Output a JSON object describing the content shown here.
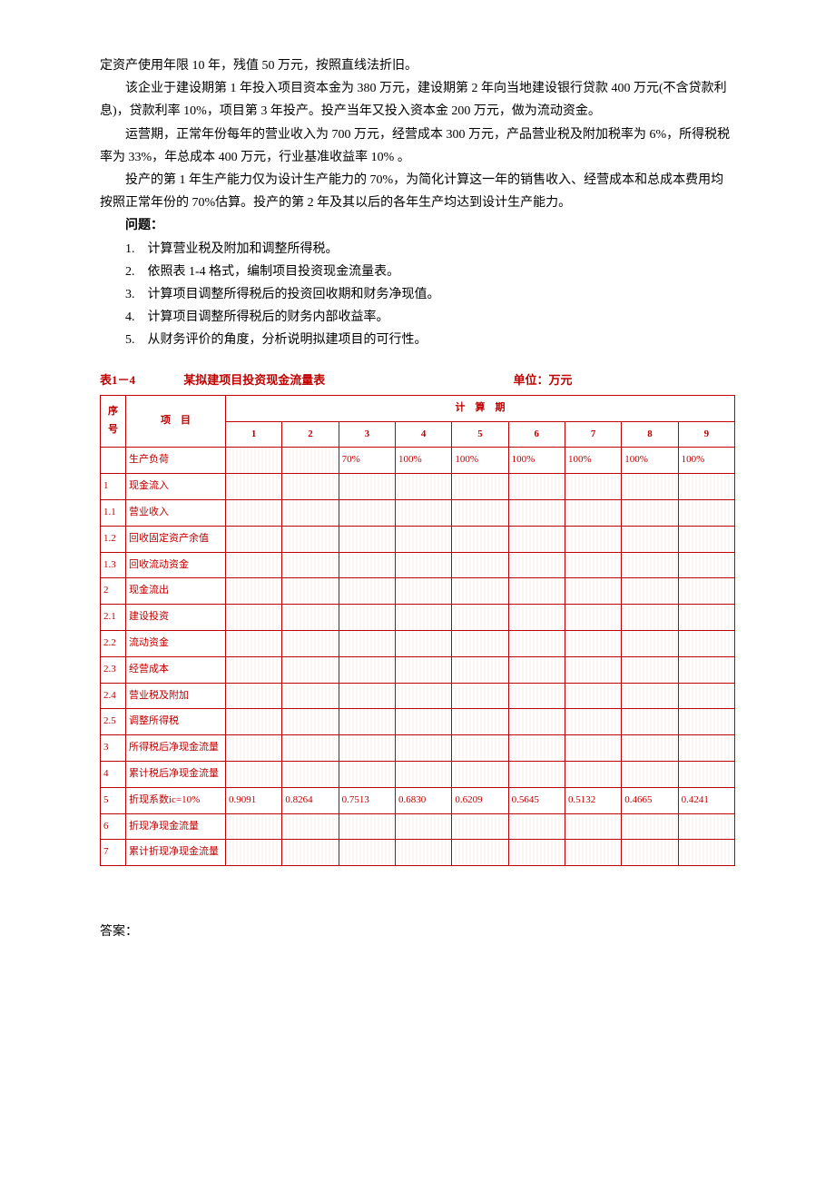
{
  "paragraphs": {
    "p1": "定资产使用年限 10 年，残值 50 万元，按照直线法折旧。",
    "p2": "该企业于建设期第 1 年投入项目资本金为 380 万元，建设期第 2 年向当地建设银行贷款 400 万元(不含贷款利息)，贷款利率 10%，项目第 3 年投产。投产当年又投入资本金 200 万元，做为流动资金。",
    "p3": "运营期，正常年份每年的营业收入为 700 万元，经营成本 300 万元，产品营业税及附加税率为 6%，所得税税率为 33%，年总成本 400 万元，行业基准收益率 10% 。",
    "p4": "投产的第 1 年生产能力仅为设计生产能力的 70%，为简化计算这一年的销售收入、经营成本和总成本费用均按照正常年份的 70%估算。投产的第 2 年及其以后的各年生产均达到设计生产能力。",
    "q_label": "问题：",
    "q1": "1.　计算营业税及附加和调整所得税。",
    "q2": "2.　依照表 1-4 格式，编制项目投资现金流量表。",
    "q3": "3.　计算项目调整所得税后的投资回收期和财务净现值。",
    "q4": "4.　计算项目调整所得税后的财务内部收益率。",
    "q5": "5.　从财务评价的角度，分析说明拟建项目的可行性。"
  },
  "table": {
    "caption_left": "表1－4",
    "caption_title": "某拟建项目投资现金流量表",
    "caption_unit": "单位：万元",
    "header_seq": "序号",
    "header_item": "项　目",
    "header_period": "计　算　期",
    "periods": [
      "1",
      "2",
      "3",
      "4",
      "5",
      "6",
      "7",
      "8",
      "9"
    ],
    "rows": [
      {
        "seq": "",
        "item": "生产负荷",
        "cells": [
          "",
          "",
          "70%",
          "100%",
          "100%",
          "100%",
          "100%",
          "100%",
          "100%"
        ]
      },
      {
        "seq": "1",
        "item": "现金流入",
        "cells": [
          "",
          "",
          "",
          "",
          "",
          "",
          "",
          "",
          ""
        ]
      },
      {
        "seq": "1.1",
        "item": "营业收入",
        "cells": [
          "",
          "",
          "",
          "",
          "",
          "",
          "",
          "",
          ""
        ]
      },
      {
        "seq": "1.2",
        "item": "回收固定资产余值",
        "cells": [
          "",
          "",
          "",
          "",
          "",
          "",
          "",
          "",
          ""
        ]
      },
      {
        "seq": "1.3",
        "item": "回收流动资金",
        "cells": [
          "",
          "",
          "",
          "",
          "",
          "",
          "",
          "",
          ""
        ]
      },
      {
        "seq": "2",
        "item": "现金流出",
        "cells": [
          "",
          "",
          "",
          "",
          "",
          "",
          "",
          "",
          ""
        ]
      },
      {
        "seq": "2.1",
        "item": "建设投资",
        "cells": [
          "",
          "",
          "",
          "",
          "",
          "",
          "",
          "",
          ""
        ]
      },
      {
        "seq": "2.2",
        "item": "流动资金",
        "cells": [
          "",
          "",
          "",
          "",
          "",
          "",
          "",
          "",
          ""
        ]
      },
      {
        "seq": "2.3",
        "item": "经营成本",
        "cells": [
          "",
          "",
          "",
          "",
          "",
          "",
          "",
          "",
          ""
        ]
      },
      {
        "seq": "2.4",
        "item": "营业税及附加",
        "cells": [
          "",
          "",
          "",
          "",
          "",
          "",
          "",
          "",
          ""
        ]
      },
      {
        "seq": "2.5",
        "item": "调整所得税",
        "cells": [
          "",
          "",
          "",
          "",
          "",
          "",
          "",
          "",
          ""
        ]
      },
      {
        "seq": "3",
        "item": "所得税后净现金流量",
        "cells": [
          "",
          "",
          "",
          "",
          "",
          "",
          "",
          "",
          ""
        ]
      },
      {
        "seq": "4",
        "item": "累计税后净现金流量",
        "cells": [
          "",
          "",
          "",
          "",
          "",
          "",
          "",
          "",
          ""
        ]
      },
      {
        "seq": "5",
        "item": "折现系数ic=10%",
        "cells": [
          "0.9091",
          "0.8264",
          "0.7513",
          "0.6830",
          "0.6209",
          "0.5645",
          "0.5132",
          "0.4665",
          "0.4241"
        ]
      },
      {
        "seq": "6",
        "item": "折现净现金流量",
        "cells": [
          "",
          "",
          "",
          "",
          "",
          "",
          "",
          "",
          ""
        ]
      },
      {
        "seq": "7",
        "item": "累计折现净现金流量",
        "cells": [
          "",
          "",
          "",
          "",
          "",
          "",
          "",
          "",
          ""
        ]
      }
    ]
  },
  "answer_label": "答案："
}
